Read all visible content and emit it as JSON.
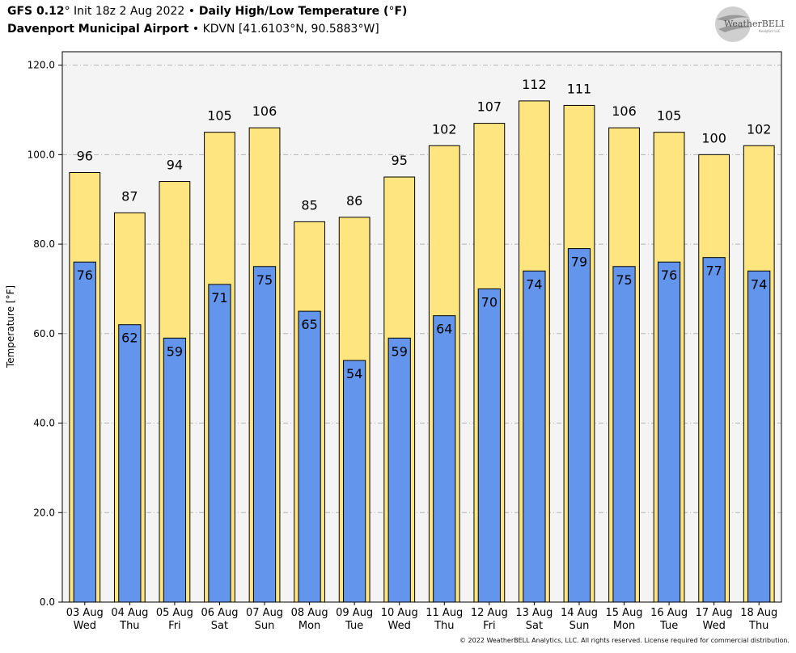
{
  "header": {
    "model": "GFS 0.12",
    "model_deg": "°",
    "init": " Init 18z 2 Aug 2022 ",
    "bullet": "•",
    "product": " Daily High/Low Temperature (",
    "product_unit_deg": "°",
    "product_unit": "F)",
    "station": "Davenport Municipal Airport",
    "station_rest": " • KDVN [41.6103",
    "lat_deg": "°",
    "lat_hem": "N, 90.5883",
    "lon_deg": "°",
    "lon_hem": "W]"
  },
  "logo": {
    "text_main": "WeatherBELL",
    "text_sub": "Analytics LLC"
  },
  "copyright": "© 2022 WeatherBELL Analytics, LLC. All rights reserved. License required for commercial distribution.",
  "chart_data": {
    "type": "bar",
    "categories": [
      "03 Aug",
      "04 Aug",
      "05 Aug",
      "06 Aug",
      "07 Aug",
      "08 Aug",
      "09 Aug",
      "10 Aug",
      "11 Aug",
      "12 Aug",
      "13 Aug",
      "14 Aug",
      "15 Aug",
      "16 Aug",
      "17 Aug",
      "18 Aug"
    ],
    "weekdays": [
      "Wed",
      "Thu",
      "Fri",
      "Sat",
      "Sun",
      "Mon",
      "Tue",
      "Wed",
      "Thu",
      "Fri",
      "Sat",
      "Sun",
      "Mon",
      "Tue",
      "Wed",
      "Thu"
    ],
    "series": [
      {
        "values": [
          96,
          87,
          94,
          105,
          106,
          85,
          86,
          95,
          102,
          107,
          112,
          111,
          106,
          105,
          100,
          102
        ],
        "color": "#ffe57f"
      },
      {
        "values": [
          76,
          62,
          59,
          71,
          75,
          65,
          54,
          59,
          64,
          70,
          74,
          79,
          75,
          76,
          77,
          74
        ],
        "color": "#6495ed"
      }
    ],
    "ylabel": "Temperature [°F]",
    "ylim": [
      0,
      123
    ],
    "yticks": [
      "0.0",
      "20.0",
      "40.0",
      "60.0",
      "80.0",
      "100.0",
      "120.0"
    ],
    "grid": true,
    "plot_background": "#f4f4f4"
  }
}
